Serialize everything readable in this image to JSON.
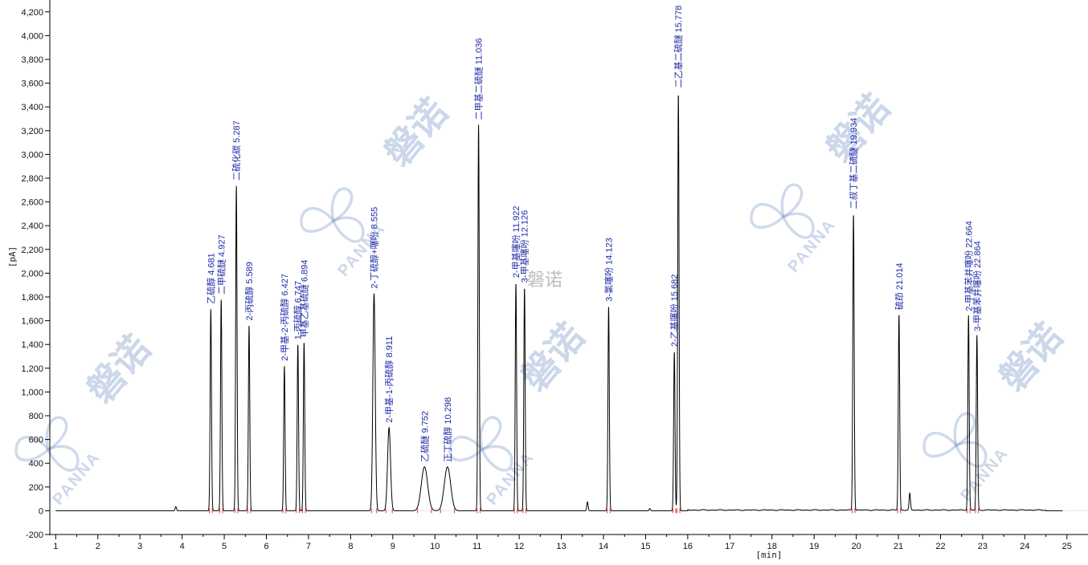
{
  "chart_data": {
    "type": "line",
    "xlabel": "[min]",
    "ylabel": "[pA]",
    "xlim": [
      0.86,
      25.5
    ],
    "ylim": [
      -200,
      4300
    ],
    "x_ticks": [
      1,
      2,
      3,
      4,
      5,
      6,
      7,
      8,
      9,
      10,
      11,
      12,
      13,
      14,
      15,
      16,
      17,
      18,
      19,
      20,
      21,
      22,
      23,
      24,
      25
    ],
    "y_ticks": [
      -200,
      0,
      200,
      400,
      600,
      800,
      1000,
      1200,
      1400,
      1600,
      1800,
      2000,
      2200,
      2400,
      2600,
      2800,
      3000,
      3200,
      3400,
      3600,
      3800,
      4000,
      4200
    ],
    "y_tick_labels": [
      "-200",
      "0",
      "200",
      "400",
      "600",
      "800",
      "1,000",
      "1,200",
      "1,400",
      "1,600",
      "1,800",
      "2,000",
      "2,200",
      "2,400",
      "2,600",
      "2,800",
      "3,000",
      "3,200",
      "3,400",
      "3,600",
      "3,800",
      "4,000",
      "4,200"
    ],
    "peaks": [
      {
        "rt": 4.681,
        "height": 1700,
        "label": "乙硫醇 4.681"
      },
      {
        "rt": 4.927,
        "height": 1780,
        "label": "二甲硫醚 4.927"
      },
      {
        "rt": 5.287,
        "height": 2740,
        "label": "二硫化碳 5.287"
      },
      {
        "rt": 5.589,
        "height": 1560,
        "label": "2-丙硫醇 5.589"
      },
      {
        "rt": 6.427,
        "height": 1220,
        "label": "2-甲基-2-丙硫醇 6.427"
      },
      {
        "rt": 6.747,
        "height": 1400,
        "label": "1-丙硫醇 6.747"
      },
      {
        "rt": 6.894,
        "height": 1420,
        "label": "甲基乙基硫醚 6.894"
      },
      {
        "rt": 8.555,
        "height": 1830,
        "label": "2-丁硫醇+噻吩 8.555"
      },
      {
        "rt": 8.911,
        "height": 700,
        "label": "2-甲基-1-丙硫醇 8.911"
      },
      {
        "rt": 9.752,
        "height": 370,
        "label": "乙硫醚 9.752"
      },
      {
        "rt": 10.298,
        "height": 370,
        "label": "正丁硫醇 10.298"
      },
      {
        "rt": 11.036,
        "height": 3250,
        "label": "二甲基二硫醚 11.036"
      },
      {
        "rt": 11.922,
        "height": 1920,
        "label": "2-甲基噻吩 11.922"
      },
      {
        "rt": 12.126,
        "height": 1880,
        "label": "3-甲基噻吩 12.126"
      },
      {
        "rt": 14.123,
        "height": 1720,
        "label": "3-氯噻吩 14.123"
      },
      {
        "rt": 15.682,
        "height": 1340,
        "label": "2-乙基噻吩 15.682"
      },
      {
        "rt": 15.778,
        "height": 3520,
        "label": "二乙基二硫醚 15.778"
      },
      {
        "rt": 19.934,
        "height": 2500,
        "label": "二叔丁基二硫醚 19.934"
      },
      {
        "rt": 21.014,
        "height": 1650,
        "label": "硫茚 21.014"
      },
      {
        "rt": 22.664,
        "height": 1640,
        "label": "2-甲基苯并噻吩 22.664"
      },
      {
        "rt": 22.864,
        "height": 1470,
        "label": "3-甲基苯并噻吩 22.864"
      }
    ],
    "minor_peaks": [
      {
        "rt": 3.85,
        "height": 35
      },
      {
        "rt": 13.62,
        "height": 75
      },
      {
        "rt": 15.1,
        "height": 18
      },
      {
        "rt": 21.27,
        "height": 140
      }
    ],
    "colors": {
      "trace": "#000000",
      "peak_label": "#1f2aa6",
      "baseline_marker": "#e23b3b",
      "watermark": "#6f8fc6"
    }
  },
  "watermarks": {
    "brand_cn": "磐诺",
    "brand_en": "PANNA",
    "small_cn": "磐诺"
  }
}
